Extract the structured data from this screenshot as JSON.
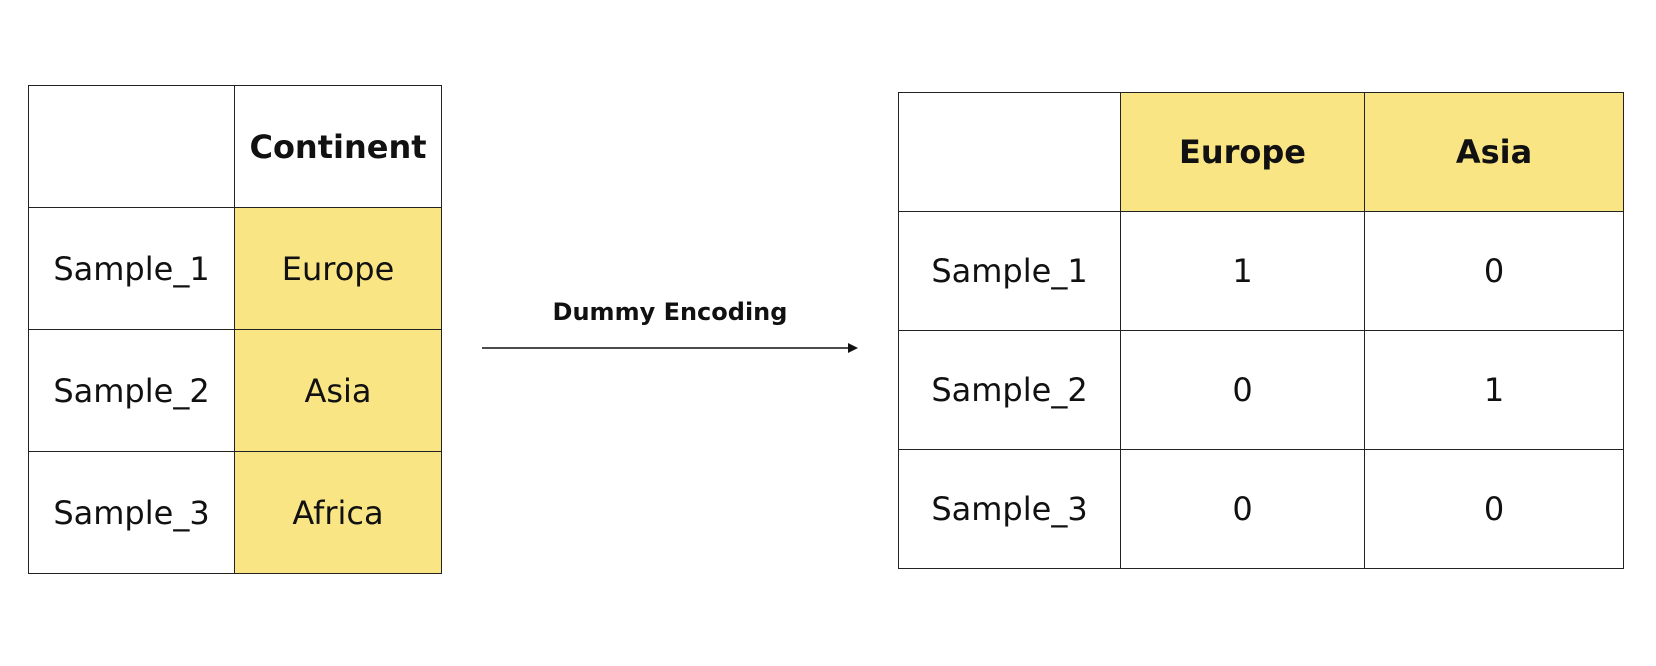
{
  "source_table": {
    "corner": "",
    "header": "Continent",
    "rows": [
      {
        "sample": "Sample_1",
        "continent": "Europe"
      },
      {
        "sample": "Sample_2",
        "continent": "Asia"
      },
      {
        "sample": "Sample_3",
        "continent": "Africa"
      }
    ]
  },
  "transform": {
    "label": "Dummy Encoding"
  },
  "encoded_table": {
    "corner": "",
    "headers": [
      "Europe",
      "Asia"
    ],
    "rows": [
      {
        "sample": "Sample_1",
        "values": [
          "1",
          "0"
        ]
      },
      {
        "sample": "Sample_2",
        "values": [
          "0",
          "1"
        ]
      },
      {
        "sample": "Sample_3",
        "values": [
          "0",
          "0"
        ]
      }
    ]
  },
  "colors": {
    "highlight": "#fae585",
    "border": "#222222",
    "text": "#111111"
  }
}
